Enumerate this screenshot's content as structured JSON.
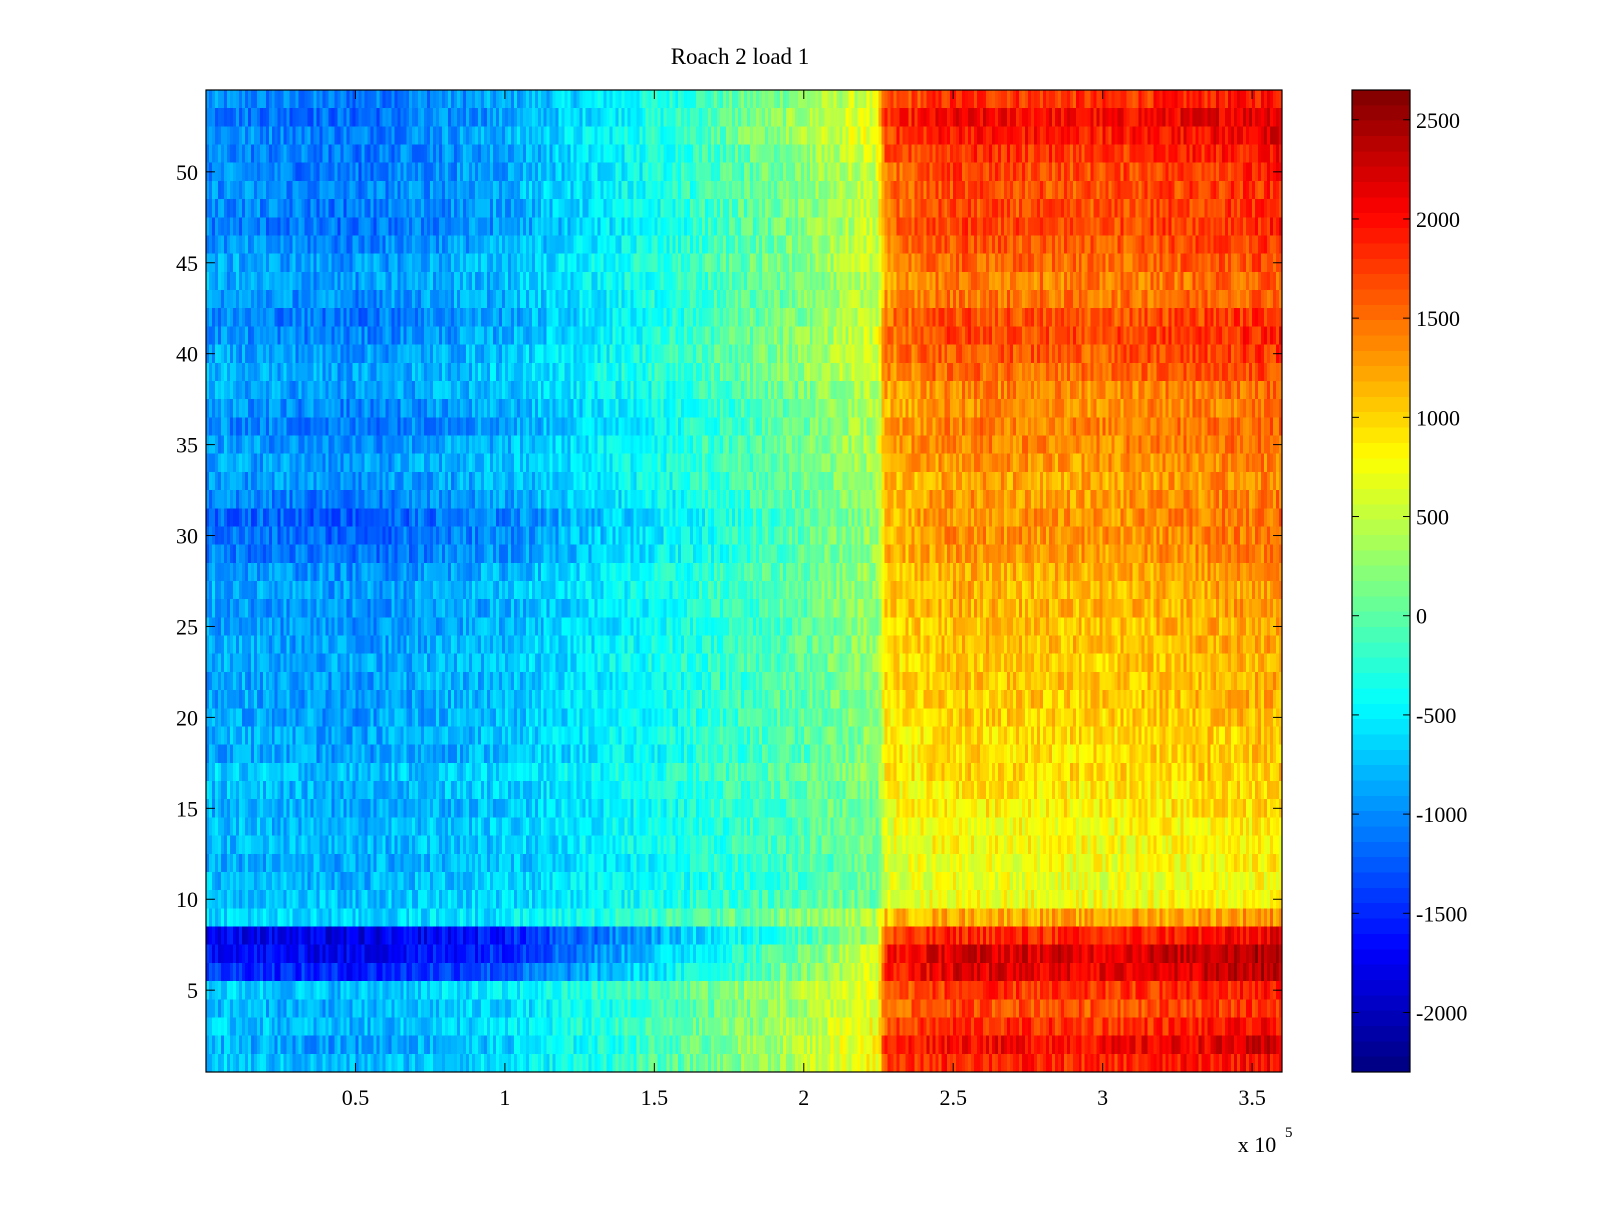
{
  "chart_data": {
    "type": "heatmap",
    "title": "Roach 2 load 1",
    "xlabel": "",
    "ylabel": "",
    "x_exponent_label": "x 10",
    "x_exponent_power": "5",
    "xlim": [
      0,
      360000
    ],
    "ylim": [
      0.5,
      54.5
    ],
    "rows": 54,
    "cols": 360,
    "x_ticks": [
      {
        "value": 50000,
        "label": "0.5"
      },
      {
        "value": 100000,
        "label": "1"
      },
      {
        "value": 150000,
        "label": "1.5"
      },
      {
        "value": 200000,
        "label": "2"
      },
      {
        "value": 250000,
        "label": "2.5"
      },
      {
        "value": 300000,
        "label": "3"
      },
      {
        "value": 350000,
        "label": "3.5"
      }
    ],
    "y_ticks": [
      {
        "value": 5,
        "label": "5"
      },
      {
        "value": 10,
        "label": "10"
      },
      {
        "value": 15,
        "label": "15"
      },
      {
        "value": 20,
        "label": "20"
      },
      {
        "value": 25,
        "label": "25"
      },
      {
        "value": 30,
        "label": "30"
      },
      {
        "value": 35,
        "label": "35"
      },
      {
        "value": 40,
        "label": "40"
      },
      {
        "value": 45,
        "label": "45"
      },
      {
        "value": 50,
        "label": "50"
      }
    ],
    "colorbar": {
      "colormap": "jet",
      "clim": [
        -2300,
        2650
      ],
      "ticks": [
        {
          "value": 2500,
          "label": "2500"
        },
        {
          "value": 2000,
          "label": "2000"
        },
        {
          "value": 1500,
          "label": "1500"
        },
        {
          "value": 1000,
          "label": "1000"
        },
        {
          "value": 500,
          "label": "500"
        },
        {
          "value": 0,
          "label": "0"
        },
        {
          "value": -500,
          "label": "-500"
        },
        {
          "value": -1000,
          "label": "-1000"
        },
        {
          "value": -1500,
          "label": "-1500"
        },
        {
          "value": -2000,
          "label": "-2000"
        }
      ]
    },
    "column_profile": {
      "x": [
        0,
        50000,
        100000,
        150000,
        200000,
        225000,
        227000,
        250000,
        300000,
        350000,
        360000
      ],
      "normal_rows": [
        -850,
        -950,
        -750,
        -300,
        200,
        500,
        1300,
        1500,
        1450,
        1600,
        1650
      ],
      "hot_rows": [
        -900,
        -1050,
        -850,
        -250,
        400,
        800,
        2100,
        2300,
        2200,
        2400,
        2400
      ],
      "dark_rows": [
        -1600,
        -1650,
        -1300,
        -400,
        700,
        1300,
        2300,
        2500,
        2450,
        2650,
        2650
      ]
    },
    "row_gradient": {
      "rows": [
        1,
        2,
        3,
        4,
        5,
        6,
        7,
        8,
        9,
        10,
        11,
        12,
        13,
        14,
        15,
        16,
        17,
        18,
        19,
        20,
        21,
        22,
        23,
        24,
        25,
        26,
        27,
        28,
        29,
        30,
        31,
        32,
        33,
        34,
        35,
        36,
        37,
        38,
        39,
        40,
        41,
        42,
        43,
        44,
        45,
        46,
        47,
        48,
        49,
        50,
        51,
        52,
        53,
        54
      ],
      "right_value": [
        2050,
        2250,
        2000,
        1850,
        1950,
        2400,
        2500,
        2100,
        1350,
        850,
        800,
        850,
        900,
        900,
        1000,
        1000,
        1100,
        1100,
        1100,
        1150,
        1200,
        1200,
        1200,
        1250,
        1250,
        1300,
        1300,
        1350,
        1450,
        1500,
        1500,
        1450,
        1400,
        1450,
        1550,
        1600,
        1500,
        1550,
        1700,
        1800,
        1900,
        1850,
        1650,
        1600,
        1700,
        1800,
        1900,
        1850,
        1850,
        1900,
        2000,
        2150,
        2250,
        2000
      ],
      "left_value": [
        -700,
        -800,
        -700,
        -750,
        -650,
        -1400,
        -1600,
        -1700,
        -600,
        -700,
        -750,
        -800,
        -750,
        -750,
        -800,
        -750,
        -700,
        -850,
        -800,
        -850,
        -850,
        -850,
        -800,
        -850,
        -900,
        -900,
        -850,
        -900,
        -1050,
        -1100,
        -1150,
        -1000,
        -900,
        -850,
        -900,
        -1000,
        -950,
        -850,
        -800,
        -850,
        -950,
        -1000,
        -900,
        -850,
        -850,
        -950,
        -1050,
        -1000,
        -950,
        -1000,
        -1000,
        -950,
        -1050,
        -1000
      ]
    }
  }
}
